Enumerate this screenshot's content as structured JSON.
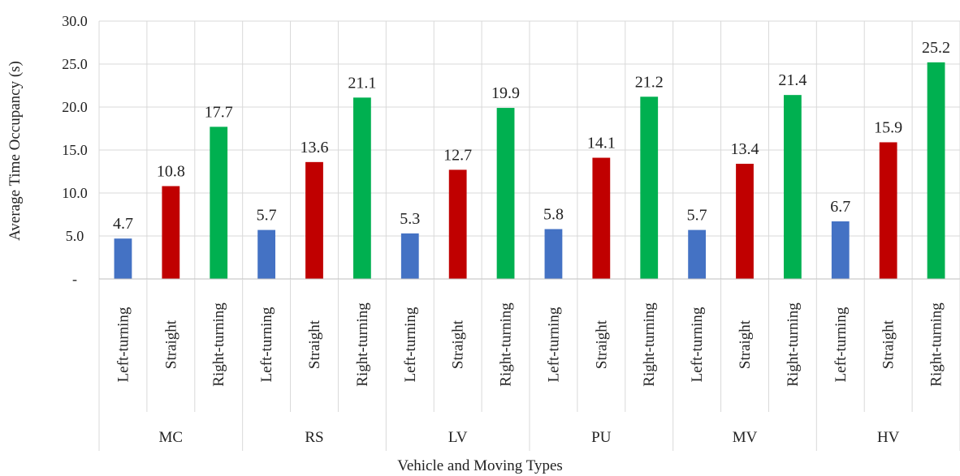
{
  "chart_data": {
    "type": "bar",
    "xlabel": "Vehicle and Moving Types",
    "ylabel": "Average Time Occupancy (s)",
    "ylim": [
      0,
      30
    ],
    "y_ticks": [
      "-",
      "5.0",
      "10.0",
      "15.0",
      "20.0",
      "25.0",
      "30.0"
    ],
    "grid": true,
    "legend": "none",
    "categories": [
      {
        "group": "MC",
        "items": [
          {
            "label": "Left-turning",
            "value": 4.7,
            "value_text": "4.7",
            "color": "#4472C4"
          },
          {
            "label": "Straight",
            "value": 10.8,
            "value_text": "10.8",
            "color": "#C00000"
          },
          {
            "label": "Right-turning",
            "value": 17.7,
            "value_text": "17.7",
            "color": "#00B050"
          }
        ]
      },
      {
        "group": "RS",
        "items": [
          {
            "label": "Left-turning",
            "value": 5.7,
            "value_text": "5.7",
            "color": "#4472C4"
          },
          {
            "label": "Straight",
            "value": 13.6,
            "value_text": "13.6",
            "color": "#C00000"
          },
          {
            "label": "Right-turning",
            "value": 21.1,
            "value_text": "21.1",
            "color": "#00B050"
          }
        ]
      },
      {
        "group": "LV",
        "items": [
          {
            "label": "Left-turning",
            "value": 5.3,
            "value_text": "5.3",
            "color": "#4472C4"
          },
          {
            "label": "Straight",
            "value": 12.7,
            "value_text": "12.7",
            "color": "#C00000"
          },
          {
            "label": "Right-turning",
            "value": 19.9,
            "value_text": "19.9",
            "color": "#00B050"
          }
        ]
      },
      {
        "group": "PU",
        "items": [
          {
            "label": "Left-turning",
            "value": 5.8,
            "value_text": "5.8",
            "color": "#4472C4"
          },
          {
            "label": "Straight",
            "value": 14.1,
            "value_text": "14.1",
            "color": "#C00000"
          },
          {
            "label": "Right-turning",
            "value": 21.2,
            "value_text": "21.2",
            "color": "#00B050"
          }
        ]
      },
      {
        "group": "MV",
        "items": [
          {
            "label": "Left-turning",
            "value": 5.7,
            "value_text": "5.7",
            "color": "#4472C4"
          },
          {
            "label": "Straight",
            "value": 13.4,
            "value_text": "13.4",
            "color": "#C00000"
          },
          {
            "label": "Right-turning",
            "value": 21.4,
            "value_text": "21.4",
            "color": "#00B050"
          }
        ]
      },
      {
        "group": "HV",
        "items": [
          {
            "label": "Left-turning",
            "value": 6.7,
            "value_text": "6.7",
            "color": "#4472C4"
          },
          {
            "label": "Straight",
            "value": 15.9,
            "value_text": "15.9",
            "color": "#C00000"
          },
          {
            "label": "Right-turning",
            "value": 25.2,
            "value_text": "25.2",
            "color": "#00B050"
          }
        ]
      }
    ]
  }
}
